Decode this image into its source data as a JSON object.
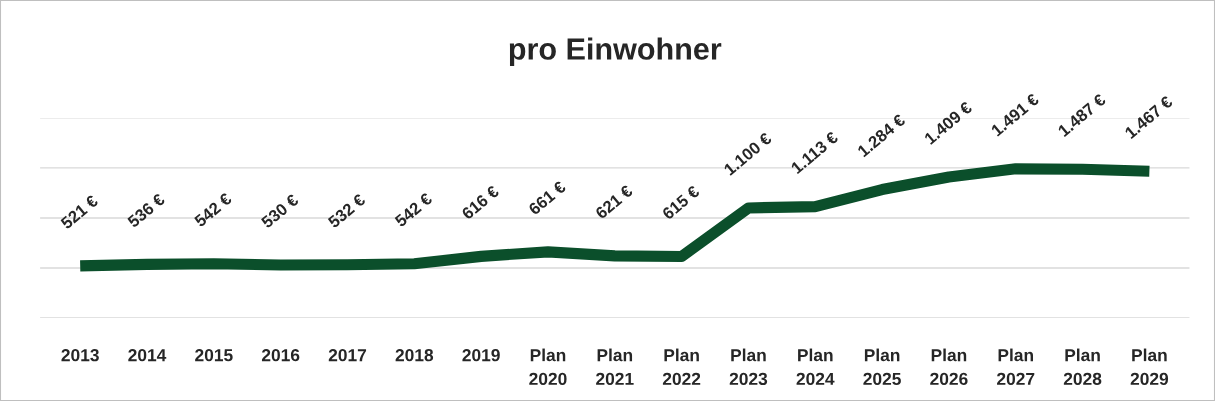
{
  "chart_data": {
    "type": "line",
    "title": "pro Einwohner",
    "categories": [
      "2013",
      "2014",
      "2015",
      "2016",
      "2017",
      "2018",
      "2019",
      "Plan\n2020",
      "Plan\n2021",
      "Plan\n2022",
      "Plan\n2023",
      "Plan\n2024",
      "Plan\n2025",
      "Plan\n2026",
      "Plan\n2027",
      "Plan\n2028",
      "Plan\n2029"
    ],
    "series": [
      {
        "color": "#0b4f2b",
        "values": [
          521,
          536,
          542,
          530,
          532,
          542,
          616,
          661,
          621,
          615,
          1100,
          1113,
          1284,
          1409,
          1491,
          1487,
          1467
        ],
        "value_labels": [
          "521 €",
          "536 €",
          "542 €",
          "530 €",
          "532 €",
          "542 €",
          "616 €",
          "661 €",
          "621 €",
          "615 €",
          "1.100 €",
          "1.113 €",
          "1.284 €",
          "1.409 €",
          "1.491 €",
          "1.487 €",
          "1.467 €"
        ]
      }
    ],
    "ylim": [
      0,
      2000
    ],
    "yticks": [
      {
        "value": 0,
        "label": null
      },
      {
        "value": 500,
        "label": null
      },
      {
        "value": 1000,
        "label": null
      },
      {
        "value": 1500,
        "label": null
      },
      {
        "value": 2000,
        "label": null
      }
    ],
    "grid": "y",
    "tick_labels": "x",
    "legend": false,
    "marker": "none",
    "line_style": "solid"
  }
}
